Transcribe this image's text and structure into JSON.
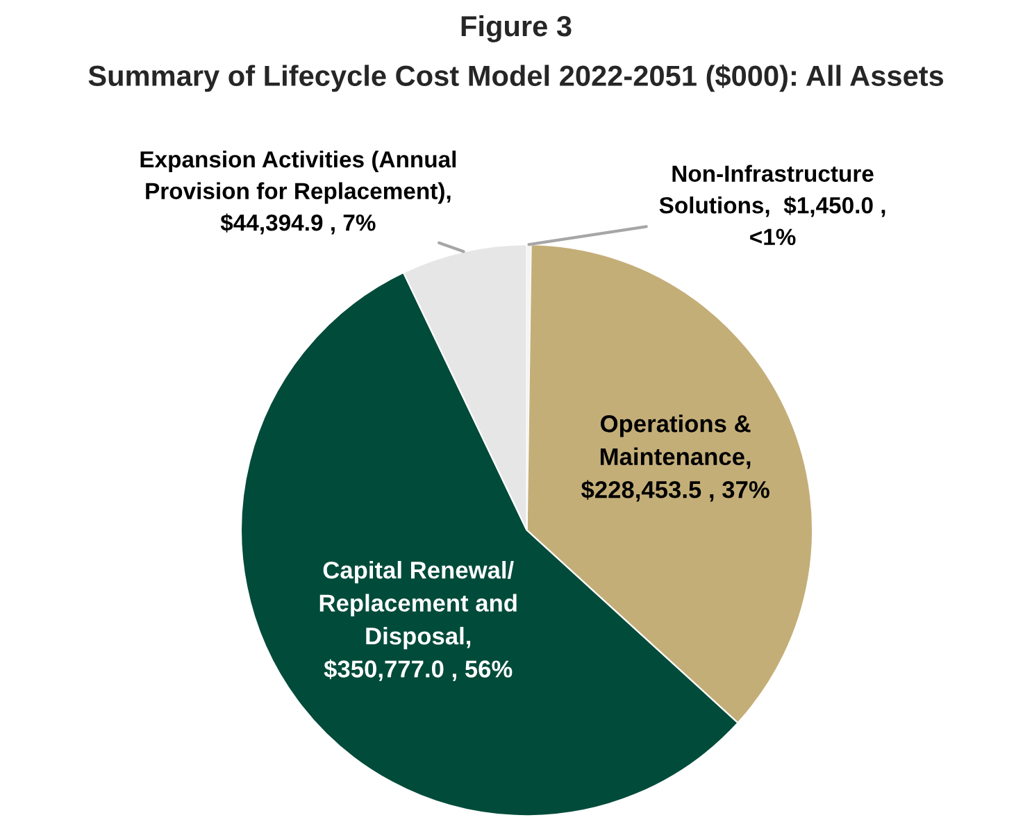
{
  "chart_data": {
    "type": "pie",
    "title": "Figure 3",
    "subtitle": "Summary of Lifecycle Cost Model 2022-2051 ($000): All Assets",
    "categories": [
      "Non-Infrastructure\nSolutions",
      "Operations &\nMaintenance",
      "Capital Renewal/\nReplacement and\nDisposal",
      "Expansion Activities (Annual\nProvision for Replacement)"
    ],
    "values": [
      1450.0,
      228453.5,
      350777.0,
      44394.9
    ],
    "value_labels": [
      ",  $1,450.0 ,\n<1%",
      ",\n$228,453.5 , 37%",
      ",\n$350,777.0 , 56%",
      ",\n$44,394.9 , 7%"
    ],
    "colors": [
      "#f4f4f4",
      "#c4ae78",
      "#004b3a",
      "#e6e6e6"
    ],
    "legend": false
  }
}
